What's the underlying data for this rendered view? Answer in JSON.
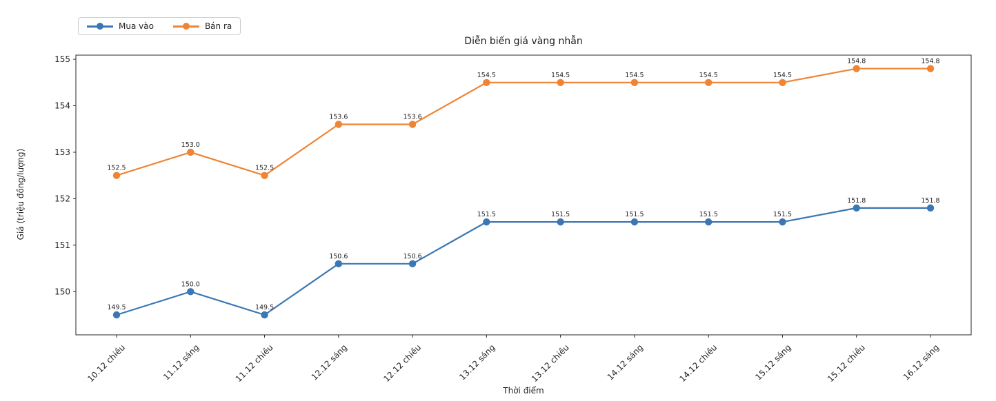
{
  "chart_data": {
    "type": "line",
    "title": "Diễn biến giá vàng nhẫn",
    "xlabel": "Thời điểm",
    "ylabel": "Giá (triệu đồng/lượng)",
    "categories": [
      "10.12 chiều",
      "11.12 sáng",
      "11.12 chiều",
      "12.12 sáng",
      "12.12 chiều",
      "13.12 sáng",
      "13.12 chiều",
      "14.12 sáng",
      "14.12 chiều",
      "15.12 sáng",
      "15.12 chiều",
      "16.12 sáng"
    ],
    "series": [
      {
        "name": "Mua vào",
        "color": "#3a77b4",
        "values": [
          149.5,
          150.0,
          149.5,
          150.6,
          150.6,
          151.5,
          151.5,
          151.5,
          151.5,
          151.5,
          151.8,
          151.8
        ],
        "point_labels": [
          "149.5",
          "150.0",
          "149.5",
          "150.6",
          "150.6",
          "151.5",
          "151.5",
          "151.5",
          "151.5",
          "151.5",
          "151.8",
          "151.8"
        ]
      },
      {
        "name": "Bán ra",
        "color": "#ee8434",
        "values": [
          152.5,
          153.0,
          152.5,
          153.6,
          153.6,
          154.5,
          154.5,
          154.5,
          154.5,
          154.5,
          154.8,
          154.8
        ],
        "point_labels": [
          "152.5",
          "153.0",
          "152.5",
          "153.6",
          "153.6",
          "154.5",
          "154.5",
          "154.5",
          "154.5",
          "154.5",
          "154.8",
          "154.8"
        ]
      }
    ],
    "yticks": [
      "150",
      "151",
      "152",
      "153",
      "154",
      "155"
    ],
    "ylim": [
      149.07,
      155.09
    ],
    "grid": false,
    "legend_position": "top-left-outside",
    "axis_color": "#262626",
    "text_color": "#262626",
    "point_label_color": "#1f1f1f"
  }
}
